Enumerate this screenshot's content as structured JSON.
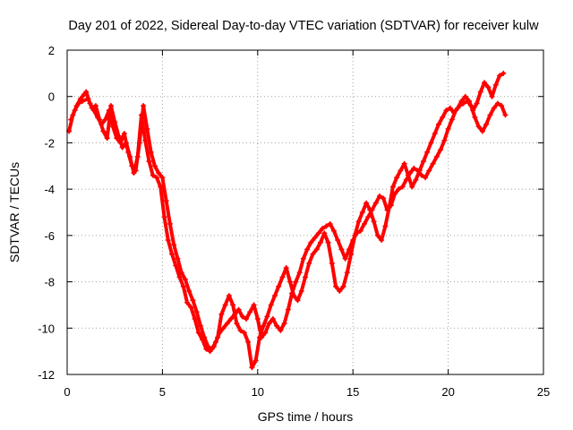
{
  "chart_data": {
    "type": "scatter",
    "title": "Day 201 of 2022, Sidereal Day-to-day VTEC variation (SDTVAR) for receiver kulw",
    "xlabel": "GPS time / hours",
    "ylabel": "SDTVAR / TECUs",
    "xlim": [
      0,
      25
    ],
    "ylim": [
      -12,
      2
    ],
    "xticks": [
      0,
      5,
      10,
      15,
      20,
      25
    ],
    "yticks": [
      -12,
      -10,
      -8,
      -6,
      -4,
      -2,
      0,
      2
    ],
    "xtick_labels": [
      "0",
      "5",
      "10",
      "15",
      "20",
      "25"
    ],
    "ytick_labels": [
      "-12",
      "-10",
      "-8",
      "-6",
      "-4",
      "-2",
      "0",
      "2"
    ],
    "grid": true,
    "marker": "+",
    "color": "#ff0000",
    "series": [
      {
        "name": "SDTVAR",
        "x": [
          0.1,
          0.3,
          0.5,
          0.7,
          0.9,
          1.0,
          1.2,
          1.4,
          1.6,
          1.8,
          2.0,
          2.2,
          2.4,
          2.6,
          2.8,
          3.0,
          3.2,
          3.4,
          3.6,
          3.8,
          4.0,
          4.2,
          4.4,
          4.6,
          4.8,
          5.0,
          5.2,
          5.4,
          5.6,
          5.8,
          6.0,
          6.2,
          6.4,
          6.6,
          6.8,
          7.0,
          7.2,
          7.4,
          7.6,
          7.8,
          8.0,
          8.2,
          8.4,
          8.6,
          8.8,
          9.0,
          9.2,
          9.4,
          9.6,
          9.8,
          10.0,
          10.2,
          10.4,
          10.6,
          10.8,
          11.0,
          11.2,
          11.4,
          11.6,
          11.8,
          12.0,
          12.2,
          12.4,
          12.6,
          12.8,
          13.0,
          13.2,
          13.4,
          13.6,
          13.8,
          14.0,
          14.2,
          14.4,
          14.6,
          14.8,
          15.0,
          15.2,
          15.4,
          15.6,
          15.8,
          16.0,
          16.2,
          16.4,
          16.6,
          16.8,
          17.0,
          17.2,
          17.4,
          17.6,
          17.8,
          18.0,
          18.2,
          18.4,
          18.6,
          18.8,
          19.0,
          19.2,
          19.4,
          19.6,
          19.8,
          20.0,
          20.2,
          20.4,
          20.6,
          20.8,
          21.0,
          21.2,
          21.4,
          21.6,
          21.8,
          22.0,
          22.2,
          22.4,
          22.6,
          22.8,
          23.0
        ],
        "y": [
          -1.5,
          -0.8,
          -0.4,
          -0.1,
          0.1,
          0.2,
          -0.3,
          -0.6,
          -0.9,
          -1.2,
          -1.0,
          -0.6,
          -1.3,
          -1.8,
          -2.0,
          -1.6,
          -2.4,
          -3.0,
          -3.2,
          -2.0,
          -0.4,
          -1.4,
          -2.4,
          -3.0,
          -3.3,
          -3.5,
          -4.5,
          -5.5,
          -6.4,
          -7.0,
          -7.6,
          -7.9,
          -8.4,
          -8.8,
          -9.3,
          -9.9,
          -10.4,
          -10.8,
          -10.9,
          -10.6,
          -10.2,
          -10.0,
          -9.8,
          -9.6,
          -9.4,
          -9.2,
          -9.5,
          -9.6,
          -9.3,
          -9.0,
          -9.6,
          -10.4,
          -10.2,
          -9.8,
          -9.6,
          -9.9,
          -10.1,
          -9.8,
          -9.2,
          -8.5,
          -8.0,
          -7.6,
          -7.0,
          -6.6,
          -6.3,
          -6.1,
          -5.9,
          -5.7,
          -5.6,
          -5.5,
          -5.8,
          -6.2,
          -6.6,
          -7.0,
          -6.6,
          -6.2,
          -5.9,
          -5.8,
          -5.5,
          -5.2,
          -4.9,
          -4.6,
          -4.3,
          -4.4,
          -4.9,
          -4.7,
          -4.2,
          -4.0,
          -3.9,
          -3.6,
          -3.3,
          -3.1,
          -3.2,
          -3.4,
          -3.5,
          -3.2,
          -2.9,
          -2.6,
          -2.3,
          -1.9,
          -1.4,
          -1.0,
          -0.6,
          -0.4,
          -0.3,
          -0.2,
          -0.4,
          -0.9,
          -1.3,
          -1.5,
          -1.2,
          -0.8,
          -0.5,
          -0.3,
          -0.4,
          -0.8
        ],
        "x2": [
          0.2,
          0.4,
          0.6,
          0.8,
          1.1,
          1.3,
          1.5,
          1.7,
          1.9,
          2.1,
          2.3,
          2.5,
          2.7,
          2.9,
          3.1,
          3.3,
          3.5,
          3.7,
          3.9,
          4.1,
          4.3,
          4.5,
          4.7,
          4.9,
          5.1,
          5.3,
          5.5,
          5.7,
          5.9,
          6.1,
          6.3,
          6.5,
          6.7,
          6.9,
          7.1,
          7.3,
          7.5,
          7.7,
          7.9,
          8.1,
          8.3,
          8.5,
          8.7,
          8.9,
          9.1,
          9.3,
          9.5,
          9.7,
          9.9,
          10.1,
          10.3,
          10.5,
          10.7,
          10.9,
          11.1,
          11.3,
          11.5,
          11.7,
          11.9,
          12.1,
          12.3,
          12.5,
          12.7,
          12.9,
          13.1,
          13.3,
          13.5,
          13.7,
          13.9,
          14.1,
          14.3,
          14.5,
          14.7,
          14.9,
          15.1,
          15.3,
          15.5,
          15.7,
          15.9,
          16.1,
          16.3,
          16.5,
          16.7,
          16.9,
          17.1,
          17.3,
          17.5,
          17.7,
          17.9,
          18.1,
          18.3,
          18.5,
          18.7,
          18.9,
          19.1,
          19.3,
          19.5,
          19.7,
          19.9,
          20.1,
          20.3,
          20.5,
          20.7,
          20.9,
          21.1,
          21.3,
          21.5,
          21.7,
          21.9,
          22.1,
          22.3,
          22.5,
          22.7,
          22.9
        ],
        "y2": [
          -1.0,
          -0.6,
          -0.3,
          -0.2,
          -0.1,
          -0.5,
          -0.4,
          -1.0,
          -1.5,
          -1.8,
          -0.4,
          -1.1,
          -1.7,
          -2.2,
          -2.0,
          -2.6,
          -3.3,
          -2.6,
          -0.8,
          -1.9,
          -2.8,
          -3.4,
          -3.5,
          -3.9,
          -5.2,
          -6.2,
          -6.8,
          -7.3,
          -7.8,
          -8.2,
          -8.9,
          -9.1,
          -9.6,
          -10.2,
          -10.5,
          -10.9,
          -11.0,
          -10.8,
          -10.4,
          -9.4,
          -9.0,
          -8.6,
          -9.0,
          -9.8,
          -10.1,
          -10.2,
          -10.6,
          -11.7,
          -11.4,
          -10.4,
          -9.9,
          -9.5,
          -9.0,
          -8.6,
          -8.2,
          -7.8,
          -7.4,
          -8.0,
          -8.6,
          -8.8,
          -8.4,
          -7.8,
          -7.2,
          -6.8,
          -6.6,
          -6.3,
          -5.9,
          -6.3,
          -7.2,
          -8.2,
          -8.4,
          -8.2,
          -7.6,
          -6.8,
          -6.0,
          -5.4,
          -5.0,
          -4.6,
          -4.9,
          -5.4,
          -6.0,
          -6.2,
          -5.6,
          -4.8,
          -3.9,
          -3.5,
          -3.2,
          -2.9,
          -3.4,
          -3.9,
          -3.6,
          -3.2,
          -2.8,
          -2.4,
          -2.0,
          -1.6,
          -1.2,
          -0.9,
          -0.6,
          -0.5,
          -0.7,
          -0.5,
          -0.2,
          0.0,
          -0.2,
          -0.6,
          -0.3,
          0.2,
          0.6,
          0.4,
          0.0,
          0.5,
          0.9,
          1.0
        ]
      }
    ]
  }
}
